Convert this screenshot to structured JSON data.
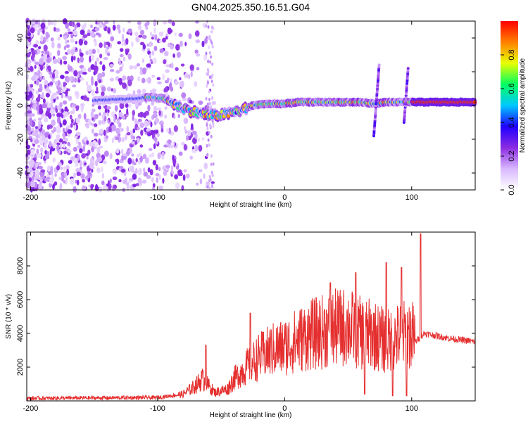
{
  "title": "GN04.2025.350.16.51.G04",
  "chart_data": [
    {
      "type": "heatmap",
      "xlabel": "Height of straight line (km)",
      "ylabel": "Frequency (Hz)",
      "xlim": [
        -203,
        150
      ],
      "ylim": [
        -50,
        50
      ],
      "xticks": [
        -200,
        -100,
        0,
        100
      ],
      "yticks": [
        -40,
        -20,
        0,
        20,
        40
      ],
      "colorbar": {
        "label": "Normalized spectral amplitude",
        "range": [
          0,
          1
        ],
        "ticks": [
          "0.0",
          "0.2",
          "0.4",
          "0.6",
          "0.8"
        ],
        "colormap": [
          "#ffffff",
          "#d9b8ff",
          "#8b2be2",
          "#2000ff",
          "#00c8ff",
          "#00ff60",
          "#e8ff00",
          "#ff8000",
          "#ff0000"
        ]
      },
      "ridge": {
        "x": [
          -150,
          -120,
          -105,
          -95,
          -85,
          -75,
          -65,
          -55,
          -45,
          -35,
          -25,
          -15,
          0,
          10,
          20,
          30,
          45,
          55,
          60,
          70,
          80,
          90,
          100,
          110,
          150
        ],
        "y": [
          3,
          4,
          5,
          4,
          0,
          -3,
          -5,
          -6,
          -5,
          -3,
          0,
          1,
          1,
          2,
          2,
          2,
          2,
          2,
          2,
          1,
          2,
          2,
          2,
          2,
          2
        ]
      }
    },
    {
      "type": "line",
      "xlabel": "Height of straight line (km)",
      "ylabel": "SNR (10 * v/v)",
      "xlim": [
        -203,
        150
      ],
      "ylim": [
        0,
        10000
      ],
      "xticks": [
        -200,
        -100,
        0,
        100
      ],
      "yticks": [
        2000,
        4000,
        6000,
        8000
      ],
      "color": "#e52f2f",
      "envelope": {
        "x": [
          -203,
          -100,
          -80,
          -70,
          -65,
          -60,
          -55,
          -45,
          -40,
          -30,
          -20,
          -10,
          0,
          10,
          20,
          30,
          40,
          50,
          60,
          70,
          80,
          90,
          100,
          103,
          110,
          130,
          150
        ],
        "y": [
          150,
          200,
          400,
          900,
          1300,
          900,
          500,
          700,
          1300,
          2000,
          2600,
          3000,
          3200,
          3600,
          3900,
          4100,
          4300,
          4400,
          4000,
          3900,
          3500,
          3800,
          4000,
          3500,
          4000,
          3700,
          3500
        ]
      },
      "spikes": [
        {
          "x": -62,
          "y": 3300
        },
        {
          "x": -27,
          "y": 5200
        },
        {
          "x": 36,
          "y": 7000
        },
        {
          "x": 56,
          "y": 7600
        },
        {
          "x": 63,
          "y": 400
        },
        {
          "x": 80,
          "y": 8200
        },
        {
          "x": 85,
          "y": 300
        },
        {
          "x": 92,
          "y": 7900
        },
        {
          "x": 96,
          "y": 300
        },
        {
          "x": 107,
          "y": 9900
        }
      ]
    }
  ]
}
